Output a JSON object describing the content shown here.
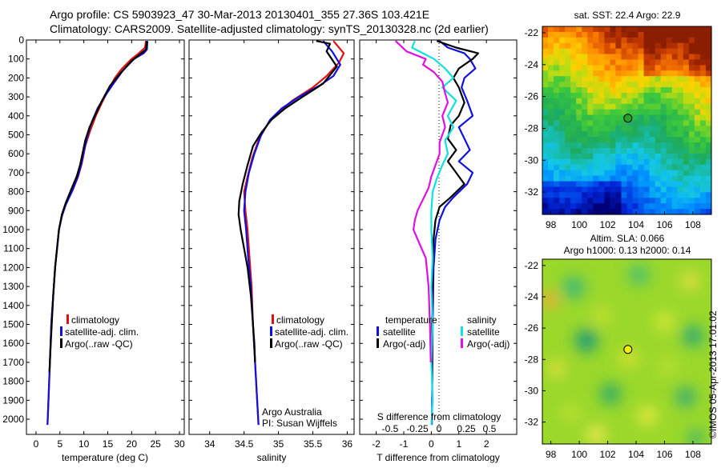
{
  "header": {
    "line1": "Argo profile: CS 5903923_47 30-Mar-2013 20130401_355 27.36S 103.421E",
    "line2": "Climatology: CARS2009. Satellite-adjusted climatology: synTS_20130328.nc (2d earlier)"
  },
  "colors": {
    "climatology": "#e01010",
    "satellite": "#1010e0",
    "argo": "#000000",
    "cyan": "#10e0e0",
    "magenta": "#e010e0"
  },
  "chart_data": [
    {
      "type": "line",
      "id": "temperature",
      "xlabel": "temperature (deg C)",
      "ylabel": "",
      "xlim": [
        -2,
        31
      ],
      "ylim": [
        2080,
        0
      ],
      "xticks": [
        0,
        5,
        10,
        15,
        20,
        25,
        30
      ],
      "yticks": [
        0,
        100,
        200,
        300,
        400,
        500,
        600,
        700,
        800,
        900,
        1000,
        1100,
        1200,
        1300,
        1400,
        1500,
        1600,
        1700,
        1800,
        1900,
        2000
      ],
      "legend": [
        "climatology",
        "satellite-adj. clim.",
        "Argo(..raw -QC)"
      ],
      "series": [
        {
          "name": "climatology",
          "color": "red",
          "points": [
            [
              23.0,
              5
            ],
            [
              22.8,
              40
            ],
            [
              21.5,
              70
            ],
            [
              20.0,
              100
            ],
            [
              18.0,
              150
            ],
            [
              16.5,
              200
            ],
            [
              15.0,
              270
            ],
            [
              13.8,
              330
            ],
            [
              12.5,
              400
            ],
            [
              11.3,
              480
            ],
            [
              10.3,
              560
            ],
            [
              9.6,
              650
            ],
            [
              8.8,
              720
            ],
            [
              7.7,
              790
            ],
            [
              6.3,
              860
            ],
            [
              5.5,
              920
            ],
            [
              4.8,
              1000
            ],
            [
              4.4,
              1100
            ],
            [
              4.0,
              1200
            ],
            [
              3.6,
              1350
            ],
            [
              3.2,
              1500
            ],
            [
              2.9,
              1700
            ],
            [
              2.6,
              1900
            ],
            [
              2.4,
              2030
            ]
          ]
        },
        {
          "name": "satellite-adj. clim.",
          "color": "blue",
          "points": [
            [
              23.3,
              5
            ],
            [
              23.2,
              50
            ],
            [
              22.5,
              70
            ],
            [
              20.5,
              100
            ],
            [
              18.2,
              160
            ],
            [
              16.2,
              230
            ],
            [
              14.3,
              300
            ],
            [
              12.9,
              360
            ],
            [
              11.7,
              430
            ],
            [
              10.7,
              510
            ],
            [
              10.0,
              590
            ],
            [
              9.4,
              660
            ],
            [
              8.6,
              730
            ],
            [
              7.5,
              800
            ],
            [
              6.2,
              870
            ],
            [
              5.4,
              930
            ],
            [
              4.8,
              1000
            ],
            [
              4.4,
              1100
            ],
            [
              4.0,
              1200
            ],
            [
              3.6,
              1350
            ],
            [
              3.2,
              1500
            ],
            [
              2.9,
              1700
            ],
            [
              2.6,
              1900
            ],
            [
              2.4,
              2030
            ]
          ]
        },
        {
          "name": "Argo(..raw -QC)",
          "color": "black",
          "points": [
            [
              23.2,
              5
            ],
            [
              23.0,
              50
            ],
            [
              22.0,
              70
            ],
            [
              20.0,
              110
            ],
            [
              17.5,
              180
            ],
            [
              15.5,
              240
            ],
            [
              13.8,
              320
            ],
            [
              12.5,
              390
            ],
            [
              11.2,
              460
            ],
            [
              10.3,
              530
            ],
            [
              9.8,
              590
            ],
            [
              9.2,
              660
            ],
            [
              8.5,
              720
            ],
            [
              7.5,
              780
            ],
            [
              6.2,
              860
            ],
            [
              5.4,
              920
            ],
            [
              4.8,
              1000
            ],
            [
              4.4,
              1100
            ],
            [
              4.0,
              1200
            ],
            [
              3.6,
              1350
            ],
            [
              3.3,
              1500
            ],
            [
              3.0,
              1650
            ],
            [
              2.8,
              1750
            ]
          ]
        }
      ]
    },
    {
      "type": "line",
      "id": "salinity",
      "xlabel": "salinity",
      "ylabel": "",
      "xlim": [
        33.7,
        36.1
      ],
      "ylim": [
        2080,
        0
      ],
      "xticks": [
        34,
        34.5,
        35,
        35.5,
        36
      ],
      "legend": [
        "climatology",
        "satellite-adj. clim.",
        "Argo(..raw -QC)"
      ],
      "annotation": [
        "Argo Australia",
        "PI: Susan Wijffels"
      ],
      "series": [
        {
          "name": "climatology",
          "color": "red",
          "points": [
            [
              35.8,
              5
            ],
            [
              35.95,
              70
            ],
            [
              35.88,
              120
            ],
            [
              35.7,
              190
            ],
            [
              35.5,
              250
            ],
            [
              35.2,
              320
            ],
            [
              35.0,
              380
            ],
            [
              34.85,
              440
            ],
            [
              34.72,
              520
            ],
            [
              34.62,
              620
            ],
            [
              34.55,
              720
            ],
            [
              34.5,
              800
            ],
            [
              34.52,
              900
            ],
            [
              34.55,
              1000
            ],
            [
              34.58,
              1150
            ],
            [
              34.61,
              1300
            ],
            [
              34.63,
              1500
            ],
            [
              34.66,
              1700
            ],
            [
              34.69,
              1900
            ],
            [
              34.71,
              2030
            ]
          ]
        },
        {
          "name": "satellite-adj. clim.",
          "color": "blue",
          "points": [
            [
              35.65,
              5
            ],
            [
              35.78,
              60
            ],
            [
              35.9,
              130
            ],
            [
              35.8,
              190
            ],
            [
              35.6,
              240
            ],
            [
              35.3,
              300
            ],
            [
              35.05,
              360
            ],
            [
              34.88,
              420
            ],
            [
              34.75,
              500
            ],
            [
              34.65,
              600
            ],
            [
              34.57,
              700
            ],
            [
              34.52,
              800
            ],
            [
              34.5,
              900
            ],
            [
              34.53,
              1000
            ],
            [
              34.56,
              1150
            ],
            [
              34.6,
              1300
            ],
            [
              34.63,
              1500
            ],
            [
              34.66,
              1700
            ],
            [
              34.69,
              1900
            ],
            [
              34.71,
              2030
            ]
          ]
        },
        {
          "name": "Argo(..raw -QC)",
          "color": "black",
          "points": [
            [
              35.55,
              5
            ],
            [
              35.75,
              20
            ],
            [
              35.7,
              60
            ],
            [
              35.85,
              140
            ],
            [
              35.65,
              230
            ],
            [
              35.35,
              300
            ],
            [
              35.1,
              360
            ],
            [
              34.9,
              420
            ],
            [
              34.75,
              490
            ],
            [
              34.63,
              560
            ],
            [
              34.55,
              660
            ],
            [
              34.48,
              760
            ],
            [
              34.43,
              850
            ],
            [
              34.42,
              920
            ],
            [
              34.45,
              1000
            ],
            [
              34.5,
              1100
            ],
            [
              34.55,
              1200
            ],
            [
              34.6,
              1350
            ],
            [
              34.63,
              1500
            ],
            [
              34.65,
              1600
            ],
            [
              34.66,
              1700
            ]
          ]
        }
      ]
    },
    {
      "type": "line",
      "id": "difference",
      "xlabel": "T difference from climatology",
      "xlabel2": "S difference from climatology",
      "xlim": [
        -2.6,
        3.1
      ],
      "ylim": [
        2080,
        0
      ],
      "xticks": [
        -2,
        -1,
        0,
        1,
        2
      ],
      "xticks_top": [
        "-0.5",
        "-0.25",
        "0",
        "0.25",
        "0.5"
      ],
      "legend_headings": [
        "temperature",
        "salinity"
      ],
      "legend": [
        "satellite",
        "Argo(-adj)",
        "satellite",
        "Argo(-adj)"
      ],
      "series": [
        {
          "name": "temperature satellite",
          "color": "blue",
          "points": [
            [
              0.3,
              5
            ],
            [
              0.6,
              40
            ],
            [
              1.2,
              70
            ],
            [
              1.4,
              100
            ],
            [
              1.6,
              150
            ],
            [
              1.2,
              200
            ],
            [
              1.1,
              250
            ],
            [
              1.3,
              320
            ],
            [
              1.5,
              400
            ],
            [
              1.0,
              460
            ],
            [
              1.2,
              520
            ],
            [
              1.4,
              580
            ],
            [
              1.0,
              640
            ],
            [
              1.5,
              700
            ],
            [
              1.3,
              760
            ],
            [
              0.8,
              830
            ],
            [
              0.5,
              880
            ],
            [
              0.3,
              950
            ],
            [
              0.15,
              1050
            ],
            [
              0.08,
              1200
            ],
            [
              0.05,
              1500
            ],
            [
              0.03,
              1900
            ],
            [
              0.02,
              2030
            ]
          ]
        },
        {
          "name": "temperature Argo(-adj)",
          "color": "black",
          "points": [
            [
              0.2,
              5
            ],
            [
              0.9,
              40
            ],
            [
              1.7,
              70
            ],
            [
              1.5,
              100
            ],
            [
              1.0,
              150
            ],
            [
              0.8,
              200
            ],
            [
              1.0,
              250
            ],
            [
              1.2,
              330
            ],
            [
              1.0,
              400
            ],
            [
              0.7,
              450
            ],
            [
              0.6,
              520
            ],
            [
              0.9,
              580
            ],
            [
              0.6,
              640
            ],
            [
              0.9,
              700
            ],
            [
              1.2,
              760
            ],
            [
              0.7,
              830
            ],
            [
              0.3,
              880
            ],
            [
              0.15,
              950
            ],
            [
              0.08,
              1050
            ],
            [
              0.05,
              1200
            ],
            [
              0.03,
              1500
            ],
            [
              0.02,
              1750
            ]
          ]
        },
        {
          "name": "salinity satellite",
          "color": "cyan",
          "points": [
            [
              -0.6,
              5
            ],
            [
              -0.7,
              40
            ],
            [
              -0.3,
              70
            ],
            [
              0.1,
              100
            ],
            [
              0.5,
              150
            ],
            [
              0.8,
              200
            ],
            [
              0.4,
              250
            ],
            [
              0.9,
              320
            ],
            [
              0.6,
              400
            ],
            [
              0.8,
              460
            ],
            [
              0.5,
              530
            ],
            [
              0.6,
              600
            ],
            [
              0.4,
              660
            ],
            [
              0.2,
              730
            ],
            [
              0.05,
              800
            ],
            [
              0.0,
              900
            ],
            [
              0.0,
              1000
            ],
            [
              0.05,
              1150
            ],
            [
              0.0,
              1300
            ],
            [
              0.05,
              1500
            ],
            [
              0.0,
              1700
            ],
            [
              0.05,
              1900
            ],
            [
              0.0,
              2030
            ]
          ]
        },
        {
          "name": "salinity Argo(-adj)",
          "color": "magenta",
          "points": [
            [
              -1.3,
              5
            ],
            [
              -0.9,
              60
            ],
            [
              -0.2,
              100
            ],
            [
              -0.3,
              130
            ],
            [
              0.1,
              170
            ],
            [
              0.4,
              220
            ],
            [
              0.5,
              280
            ],
            [
              0.6,
              330
            ],
            [
              0.4,
              400
            ],
            [
              0.5,
              460
            ],
            [
              0.3,
              540
            ],
            [
              0.3,
              600
            ],
            [
              0.15,
              660
            ],
            [
              0.0,
              720
            ],
            [
              -0.1,
              780
            ],
            [
              -0.3,
              840
            ],
            [
              -0.5,
              900
            ],
            [
              -0.6,
              950
            ],
            [
              -0.65,
              1000
            ],
            [
              -0.5,
              1050
            ],
            [
              -0.2,
              1150
            ],
            [
              -0.1,
              1300
            ],
            [
              -0.05,
              1500
            ],
            [
              -0.02,
              1700
            ]
          ]
        }
      ]
    },
    {
      "type": "heatmap",
      "id": "sst_map",
      "title": "sat. SST: 22.4  Argo: 22.9",
      "xlim": [
        97.4,
        109.3
      ],
      "ylim": [
        -33.4,
        -21.6
      ],
      "xticks": [
        98,
        100,
        102,
        104,
        106,
        108
      ],
      "yticks": [
        -22,
        -24,
        -26,
        -28,
        -30,
        -32
      ],
      "marker": {
        "lon": 103.421,
        "lat": -27.36
      }
    },
    {
      "type": "heatmap",
      "id": "sla_map",
      "title": "Altim. SLA: 0.066",
      "subtitle": "Argo h1000: 0.13 h2000: 0.14",
      "xlim": [
        97.4,
        109.3
      ],
      "ylim": [
        -33.4,
        -21.6
      ],
      "xticks": [
        98,
        100,
        102,
        104,
        106,
        108
      ],
      "yticks": [
        -22,
        -24,
        -26,
        -28,
        -30,
        -32
      ],
      "marker": {
        "lon": 103.421,
        "lat": -27.36
      }
    }
  ],
  "footer": {
    "watermark": "©IMOS 05-Apr-2013 17:01:02"
  }
}
